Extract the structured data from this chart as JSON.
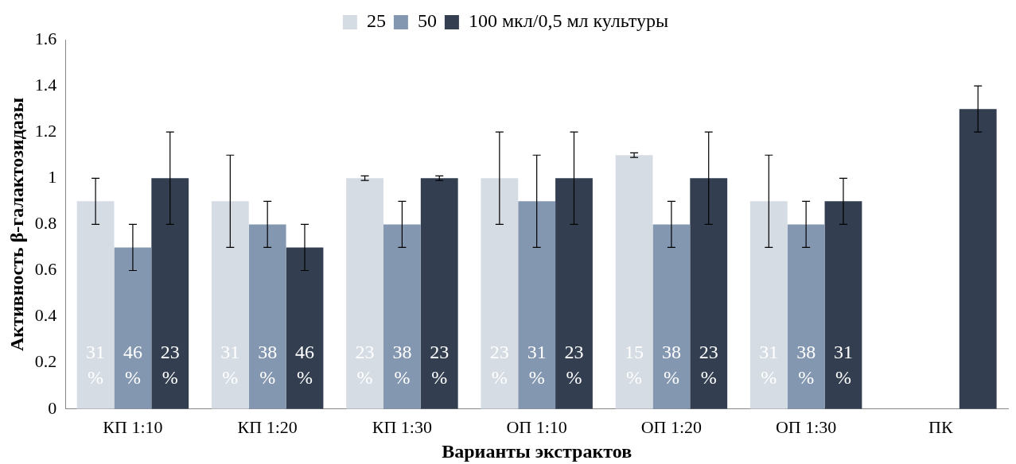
{
  "chart_data": {
    "type": "bar",
    "categories": [
      "КП 1:10",
      "КП 1:20",
      "КП 1:30",
      "ОП 1:10",
      "ОП 1:20",
      "ОП 1:30",
      "ПК"
    ],
    "xlabel": "Варианты экстрактов",
    "ylabel": "Активность β-галактозидазы",
    "ylim": [
      0,
      1.6
    ],
    "yticks": [
      0,
      0.2,
      0.4,
      0.6,
      0.8,
      1,
      1.2,
      1.4,
      1.6
    ],
    "grid": false,
    "legend": "top",
    "series": [
      {
        "name": "25",
        "color": "#d6dce4",
        "values": [
          0.9,
          0.9,
          1.0,
          1.0,
          1.1,
          0.9,
          null
        ],
        "errors": [
          0.1,
          0.2,
          0.01,
          0.2,
          0.01,
          0.2,
          null
        ]
      },
      {
        "name": "50",
        "color": "#8497b0",
        "values": [
          0.7,
          0.8,
          0.8,
          0.9,
          0.8,
          0.8,
          null
        ],
        "errors": [
          0.1,
          0.1,
          0.1,
          0.2,
          0.1,
          0.1,
          null
        ]
      },
      {
        "name": "100 мкл/0,5 мл культуры",
        "color": "#333f50",
        "values": [
          1.0,
          0.7,
          1.0,
          1.0,
          1.0,
          0.9,
          1.3
        ],
        "errors": [
          0.2,
          0.1,
          0.01,
          0.2,
          0.2,
          0.1,
          0.1
        ]
      }
    ],
    "annotations": [
      "31 %",
      "46 %",
      "23 %",
      "31 %",
      "38 %",
      "46 %",
      "23 %",
      "38 %",
      "23 %",
      "23 %",
      "31 %",
      "23 %",
      "15 %",
      "38 %",
      "23 %",
      "31 %",
      "38 %",
      "31 %"
    ]
  }
}
